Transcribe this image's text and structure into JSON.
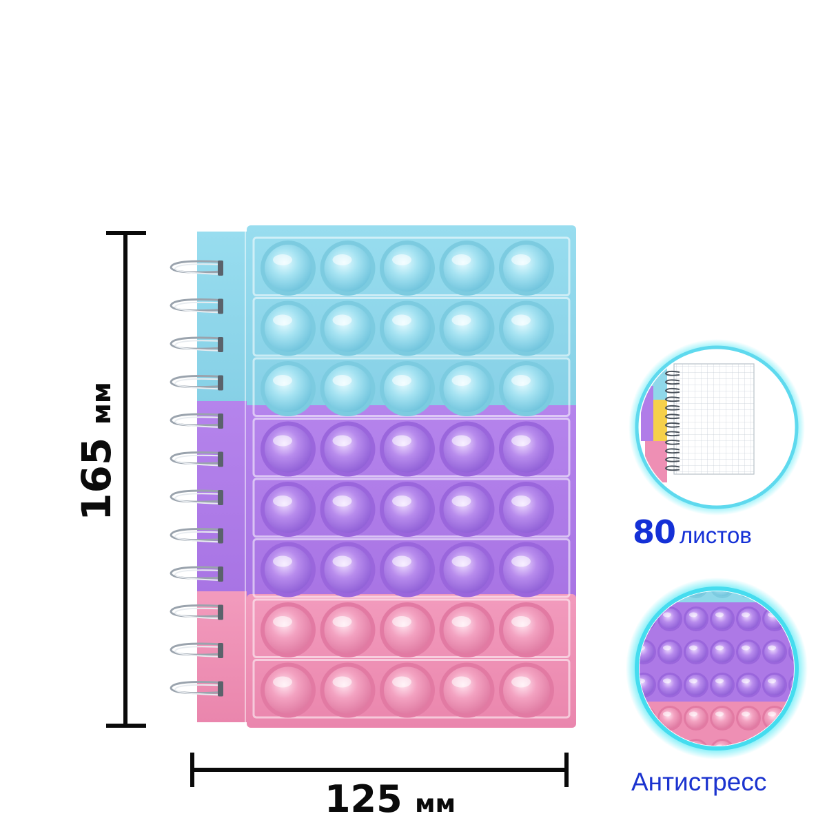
{
  "dimensions": {
    "height": {
      "value": "165",
      "unit": "мм"
    },
    "width": {
      "value": "125",
      "unit": "мм"
    }
  },
  "notebook": {
    "description_icon": "pop-it-spiral-notebook",
    "rows": 8,
    "columns": 5,
    "row_colors": [
      "#8fd8ea",
      "#8fd8ea",
      "#8fd8ea",
      "#b07ce8",
      "#b07ce8",
      "#b07ce8",
      "#ee8fb4",
      "#ee8fb4"
    ]
  },
  "badges": {
    "pages": {
      "number": "80",
      "word": "листов",
      "icon": "grid-paper-icon"
    },
    "feature": {
      "word": "Антистресс",
      "icon": "bubbles-closeup-icon"
    }
  },
  "colors": {
    "accent_text": "#1430d6",
    "glow": "#36e6f4",
    "blue": "#8fd8ea",
    "purple": "#b07ce8",
    "pink": "#ee8fb4"
  }
}
